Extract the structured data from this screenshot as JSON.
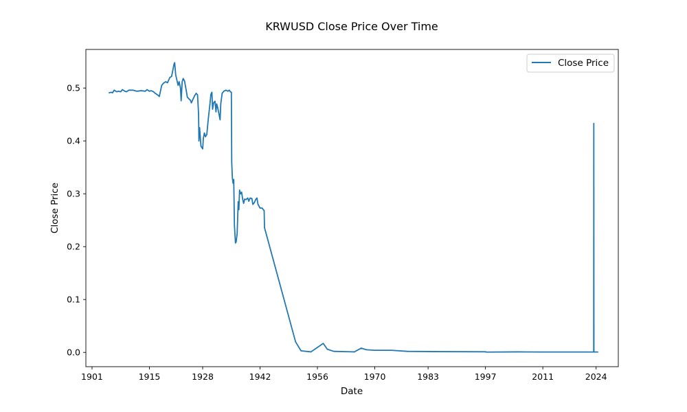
{
  "chart_data": {
    "type": "line",
    "title": "KRWUSD Close Price Over Time",
    "xlabel": "Date",
    "ylabel": "Close Price",
    "x_axis": {
      "kind": "date",
      "range": [
        "1899-07-01",
        "2029-06-01"
      ],
      "ticks": [
        "1901",
        "1915",
        "1928",
        "1942",
        "1956",
        "1970",
        "1983",
        "1997",
        "2011",
        "2024"
      ]
    },
    "y_axis": {
      "range": [
        -0.027,
        0.573
      ],
      "ticks": [
        "0.0",
        "0.1",
        "0.2",
        "0.3",
        "0.4",
        "0.5"
      ]
    },
    "grid": false,
    "legend": {
      "position": "top-right",
      "entries": [
        "Close Price"
      ]
    },
    "series": [
      {
        "name": "Close Price",
        "color": "#1f77b4",
        "points": [
          [
            "1905-03-01",
            0.491
          ],
          [
            "1905-09-01",
            0.492
          ],
          [
            "1906-01-01",
            0.491
          ],
          [
            "1906-06-01",
            0.496
          ],
          [
            "1907-01-01",
            0.493
          ],
          [
            "1907-07-01",
            0.494
          ],
          [
            "1908-01-01",
            0.493
          ],
          [
            "1908-06-01",
            0.497
          ],
          [
            "1909-01-01",
            0.494
          ],
          [
            "1909-06-01",
            0.493
          ],
          [
            "1910-01-01",
            0.496
          ],
          [
            "1911-01-01",
            0.496
          ],
          [
            "1911-06-01",
            0.495
          ],
          [
            "1912-01-01",
            0.494
          ],
          [
            "1913-01-01",
            0.495
          ],
          [
            "1914-01-01",
            0.494
          ],
          [
            "1914-06-01",
            0.497
          ],
          [
            "1915-01-01",
            0.494
          ],
          [
            "1915-06-01",
            0.495
          ],
          [
            "1916-01-01",
            0.493
          ],
          [
            "1916-06-01",
            0.49
          ],
          [
            "1917-01-01",
            0.487
          ],
          [
            "1917-06-01",
            0.484
          ],
          [
            "1918-01-01",
            0.505
          ],
          [
            "1918-06-01",
            0.509
          ],
          [
            "1919-01-01",
            0.512
          ],
          [
            "1919-06-01",
            0.51
          ],
          [
            "1920-01-01",
            0.52
          ],
          [
            "1920-06-01",
            0.522
          ],
          [
            "1921-01-01",
            0.545
          ],
          [
            "1921-03-01",
            0.548
          ],
          [
            "1921-06-01",
            0.525
          ],
          [
            "1922-01-01",
            0.505
          ],
          [
            "1922-04-01",
            0.512
          ],
          [
            "1922-08-01",
            0.5
          ],
          [
            "1922-10-01",
            0.476
          ],
          [
            "1923-01-01",
            0.512
          ],
          [
            "1923-04-01",
            0.518
          ],
          [
            "1923-08-01",
            0.513
          ],
          [
            "1924-01-01",
            0.495
          ],
          [
            "1924-04-01",
            0.483
          ],
          [
            "1924-08-01",
            0.48
          ],
          [
            "1925-01-01",
            0.477
          ],
          [
            "1925-04-01",
            0.472
          ],
          [
            "1925-08-01",
            0.478
          ],
          [
            "1926-01-01",
            0.485
          ],
          [
            "1926-06-01",
            0.49
          ],
          [
            "1926-10-01",
            0.487
          ],
          [
            "1927-01-01",
            0.45
          ],
          [
            "1927-02-01",
            0.4
          ],
          [
            "1927-04-01",
            0.425
          ],
          [
            "1927-08-01",
            0.39
          ],
          [
            "1928-01-01",
            0.385
          ],
          [
            "1928-03-01",
            0.405
          ],
          [
            "1928-06-01",
            0.415
          ],
          [
            "1928-09-01",
            0.408
          ],
          [
            "1929-01-01",
            0.412
          ],
          [
            "1929-06-01",
            0.445
          ],
          [
            "1929-10-01",
            0.468
          ],
          [
            "1930-01-01",
            0.488
          ],
          [
            "1930-04-01",
            0.492
          ],
          [
            "1930-06-01",
            0.46
          ],
          [
            "1930-09-01",
            0.472
          ],
          [
            "1931-01-01",
            0.475
          ],
          [
            "1931-04-01",
            0.455
          ],
          [
            "1931-06-01",
            0.47
          ],
          [
            "1931-09-01",
            0.463
          ],
          [
            "1932-01-01",
            0.45
          ],
          [
            "1932-04-01",
            0.44
          ],
          [
            "1932-06-01",
            0.47
          ],
          [
            "1932-10-01",
            0.49
          ],
          [
            "1933-03-01",
            0.494
          ],
          [
            "1933-09-01",
            0.496
          ],
          [
            "1934-03-01",
            0.494
          ],
          [
            "1934-07-01",
            0.496
          ],
          [
            "1934-10-01",
            0.493
          ],
          [
            "1935-01-01",
            0.492
          ],
          [
            "1935-02-01",
            0.36
          ],
          [
            "1935-04-01",
            0.33
          ],
          [
            "1935-06-01",
            0.32
          ],
          [
            "1935-08-01",
            0.327
          ],
          [
            "1935-10-01",
            0.24
          ],
          [
            "1936-01-01",
            0.207
          ],
          [
            "1936-03-01",
            0.209
          ],
          [
            "1936-06-01",
            0.225
          ],
          [
            "1936-09-01",
            0.285
          ],
          [
            "1936-11-01",
            0.27
          ],
          [
            "1937-01-01",
            0.307
          ],
          [
            "1937-04-01",
            0.3
          ],
          [
            "1937-07-01",
            0.303
          ],
          [
            "1937-10-01",
            0.29
          ],
          [
            "1938-01-01",
            0.282
          ],
          [
            "1938-04-01",
            0.29
          ],
          [
            "1938-08-01",
            0.289
          ],
          [
            "1939-01-01",
            0.292
          ],
          [
            "1939-04-01",
            0.286
          ],
          [
            "1939-08-01",
            0.292
          ],
          [
            "1940-01-01",
            0.291
          ],
          [
            "1940-04-01",
            0.28
          ],
          [
            "1940-08-01",
            0.283
          ],
          [
            "1941-01-01",
            0.29
          ],
          [
            "1941-04-01",
            0.292
          ],
          [
            "1941-07-01",
            0.28
          ],
          [
            "1942-01-01",
            0.273
          ],
          [
            "1942-07-01",
            0.273
          ],
          [
            "1943-01-01",
            0.268
          ],
          [
            "1943-02-01",
            0.236
          ],
          [
            "1950-09-01",
            0.02
          ],
          [
            "1952-01-01",
            0.003
          ],
          [
            "1954-06-01",
            0.001
          ],
          [
            "1957-06-01",
            0.017
          ],
          [
            "1958-06-01",
            0.006
          ],
          [
            "1960-01-01",
            0.002
          ],
          [
            "1965-01-01",
            0.001
          ],
          [
            "1966-09-01",
            0.008
          ],
          [
            "1968-01-01",
            0.005
          ],
          [
            "1970-01-01",
            0.004
          ],
          [
            "1974-01-01",
            0.004
          ],
          [
            "1978-01-01",
            0.002
          ],
          [
            "1985-01-01",
            0.0015
          ],
          [
            "1997-01-01",
            0.0012
          ],
          [
            "1997-04-01",
            0.0006
          ],
          [
            "2005-01-01",
            0.001
          ],
          [
            "2010-01-01",
            0.0008
          ],
          [
            "2015-01-01",
            0.0008
          ],
          [
            "2020-01-01",
            0.0008
          ],
          [
            "2023-06-01",
            0.0008
          ],
          [
            "2023-06-10",
            0.433
          ],
          [
            "2023-06-20",
            0.0008
          ],
          [
            "2024-06-01",
            0.0008
          ]
        ]
      }
    ]
  }
}
